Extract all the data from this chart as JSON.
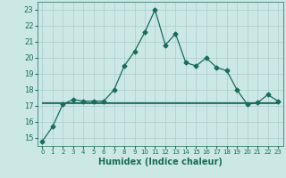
{
  "x": [
    0,
    1,
    2,
    3,
    4,
    5,
    6,
    7,
    8,
    9,
    10,
    11,
    12,
    13,
    14,
    15,
    16,
    17,
    18,
    19,
    20,
    21,
    22,
    23
  ],
  "y_main": [
    14.8,
    15.7,
    17.1,
    17.4,
    17.3,
    17.3,
    17.3,
    18.0,
    19.5,
    20.4,
    21.6,
    23.0,
    20.8,
    21.5,
    19.7,
    19.5,
    20.0,
    19.4,
    19.2,
    18.0,
    17.1,
    17.2,
    17.7,
    17.3
  ],
  "y_flat": [
    17.2,
    17.2,
    17.2,
    17.2,
    17.2,
    17.2,
    17.2,
    17.2,
    17.2,
    17.2,
    17.2,
    17.2,
    17.2,
    17.2,
    17.2,
    17.2,
    17.2,
    17.2,
    17.2,
    17.2,
    17.2,
    17.2,
    17.2,
    17.2
  ],
  "y_flat2": [
    17.15,
    17.15,
    17.15,
    17.15,
    17.15,
    17.15,
    17.15,
    17.15,
    17.15,
    17.15,
    17.15,
    17.15,
    17.15,
    17.15,
    17.15,
    17.15,
    17.15,
    17.15,
    17.15,
    17.15,
    17.15,
    17.15,
    17.15,
    17.15
  ],
  "line_color": "#1a6b5a",
  "bg_color": "#cce8e4",
  "grid_color": "#aacccc",
  "xlabel": "Humidex (Indice chaleur)",
  "ylim": [
    14.5,
    23.5
  ],
  "xlim": [
    -0.5,
    23.5
  ],
  "yticks": [
    15,
    16,
    17,
    18,
    19,
    20,
    21,
    22,
    23
  ],
  "xticks": [
    0,
    1,
    2,
    3,
    4,
    5,
    6,
    7,
    8,
    9,
    10,
    11,
    12,
    13,
    14,
    15,
    16,
    17,
    18,
    19,
    20,
    21,
    22,
    23
  ],
  "tick_fontsize": 6.0,
  "xlabel_fontsize": 7.0
}
